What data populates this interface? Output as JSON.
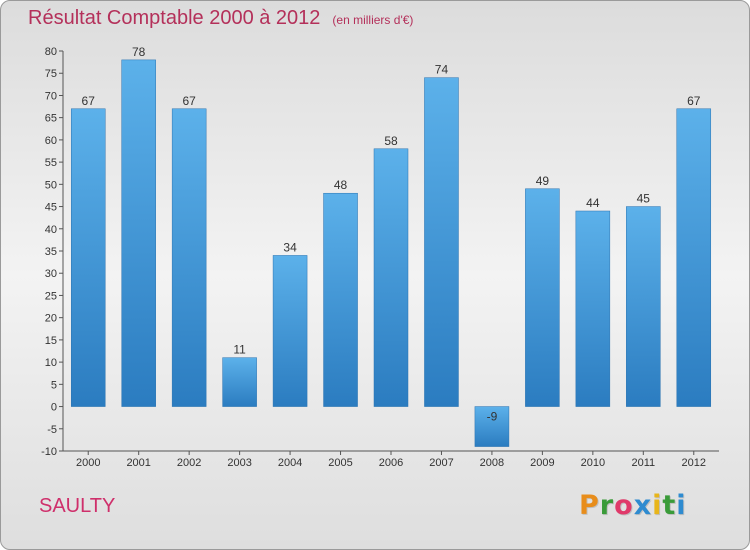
{
  "title": "Résultat Comptable 2000 à 2012",
  "unit": "(en milliers d'€)",
  "commune": "SAULTY",
  "logo": {
    "letters": [
      "P",
      "r",
      "o",
      "x",
      "i",
      "t",
      "i"
    ],
    "colors": [
      "#e88d1b",
      "#3a9b39",
      "#e03a6a",
      "#2e8bd0",
      "#e8b51b",
      "#3a9b39",
      "#2e8bd0"
    ]
  },
  "colors": {
    "bar": "#3d95db",
    "title": "#b4305a",
    "commune": "#cf2f6b"
  },
  "chart_data": {
    "type": "bar",
    "categories": [
      "2000",
      "2001",
      "2002",
      "2003",
      "2004",
      "2005",
      "2006",
      "2007",
      "2008",
      "2009",
      "2010",
      "2011",
      "2012"
    ],
    "values": [
      67,
      78,
      67,
      11,
      34,
      48,
      58,
      74,
      -9,
      49,
      44,
      45,
      67
    ],
    "data_labels": [
      "67",
      "78",
      "67",
      "11",
      "34",
      "48",
      "58",
      "74",
      "-9",
      "49",
      "44",
      "45",
      "67"
    ],
    "title": "Résultat Comptable 2000 à 2012",
    "xlabel": "",
    "ylabel": "",
    "ylim": [
      -10,
      80
    ],
    "yticks": [
      -10,
      -5,
      0,
      5,
      10,
      15,
      20,
      25,
      30,
      35,
      40,
      45,
      50,
      55,
      60,
      65,
      70,
      75,
      80
    ],
    "grid": false
  }
}
